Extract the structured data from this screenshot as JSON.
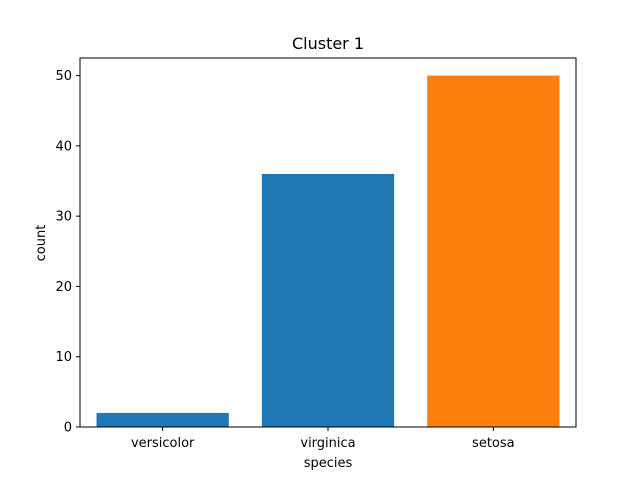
{
  "chart_data": {
    "type": "bar",
    "title": "Cluster 1",
    "xlabel": "species",
    "ylabel": "count",
    "categories": [
      "versicolor",
      "virginica",
      "setosa"
    ],
    "values": [
      2,
      36,
      50
    ],
    "bar_colors": [
      "#1f77b4",
      "#1f77b4",
      "#ff7f0e"
    ],
    "ylim": [
      0,
      52.5
    ],
    "yticks": [
      0,
      10,
      20,
      30,
      40,
      50
    ],
    "grid": false,
    "legend": "none"
  }
}
